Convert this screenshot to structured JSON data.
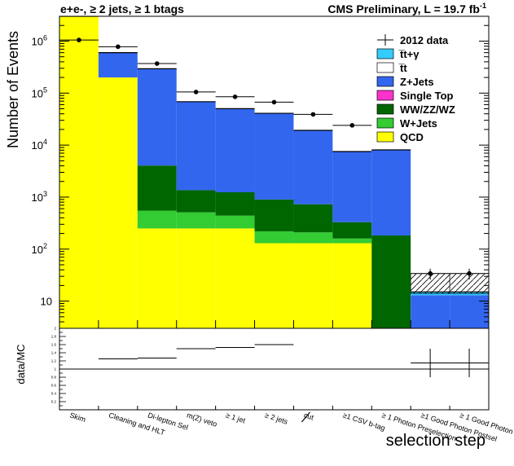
{
  "header": {
    "channel": "e+e-, ≥ 2 jets, ≥ 1 btags",
    "experiment_prefix": "CMS Preliminary, L = 19.7 fb",
    "experiment_sup": "-1"
  },
  "chart_data": {
    "type": "bar",
    "stacked": true,
    "title": "",
    "ylabel": "Number of Events",
    "xlabel": "selection step",
    "yscale": "log",
    "ylim": [
      3,
      3000000
    ],
    "legend_position": "top-right",
    "categories": [
      "Skim",
      "Cleaning and HLT",
      "Di-lepton Sel",
      "m(Z) veto",
      "≥ 1 jet",
      "≥ 2 jets",
      "cut",
      "≥1 CSV b-tag",
      "≥ 1 Photon Preselection",
      "≥1 Good Photon Postsel",
      "≥ 1 Good Photon"
    ],
    "y_ticks": [
      {
        "value": 10,
        "label": "10"
      },
      {
        "value": 100,
        "label": "10",
        "exp": "2"
      },
      {
        "value": 1000,
        "label": "10",
        "exp": "3"
      },
      {
        "value": 10000,
        "label": "10",
        "exp": "4"
      },
      {
        "value": 100000,
        "label": "10",
        "exp": "5"
      },
      {
        "value": 1000000,
        "label": "10",
        "exp": "6"
      }
    ],
    "series": [
      {
        "name": "QCD",
        "color": "#ffff00",
        "values": [
          3000000,
          200000,
          250,
          250,
          250,
          130,
          130,
          130,
          3,
          3,
          3
        ]
      },
      {
        "name": "W+Jets",
        "color": "#33cc33",
        "values": [
          0,
          0,
          300,
          260,
          190,
          90,
          80,
          30,
          0,
          0,
          0
        ]
      },
      {
        "name": "WW/ZZ/WZ",
        "color": "#006600",
        "values": [
          0,
          0,
          3500,
          850,
          800,
          680,
          520,
          170,
          180,
          0,
          0
        ]
      },
      {
        "name": "Single Top",
        "color": "#ff33cc",
        "values": [
          0,
          0,
          0,
          0,
          0,
          0,
          0,
          0,
          0,
          0,
          0
        ]
      },
      {
        "name": "Z+Jets",
        "color": "#3366ee",
        "values": [
          0,
          400000,
          290000,
          67000,
          49000,
          40000,
          18500,
          7200,
          7900,
          10,
          10
        ]
      },
      {
        "name": "t̅t",
        "color": "#ffffff",
        "values": [
          0,
          0,
          0,
          0,
          0,
          0,
          0,
          0,
          0,
          0,
          0
        ]
      },
      {
        "name": "t̅t+γ",
        "color": "#33ccff",
        "values": [
          0,
          0,
          0,
          0,
          0,
          0,
          0,
          0,
          0,
          2,
          2
        ]
      }
    ],
    "data_series": {
      "name": "2012 data",
      "values": [
        1050000,
        780000,
        370000,
        105000,
        85000,
        67000,
        39000,
        24000,
        null,
        34,
        34
      ],
      "y_errors": [
        0,
        0,
        0,
        0,
        0,
        0,
        0,
        0,
        0,
        8,
        8
      ]
    },
    "ratio": {
      "ylabel": "data/MC",
      "ylim": [
        0,
        2
      ],
      "y_ticks": [
        "0.2",
        "0.4",
        "0.6",
        "0.8",
        "1",
        "1.2",
        "1.4",
        "1.6",
        "1.8",
        "2"
      ],
      "values": [
        null,
        1.25,
        1.27,
        1.5,
        1.53,
        1.6,
        null,
        null,
        null,
        1.15,
        1.15
      ],
      "y_errors": [
        0,
        0,
        0,
        0,
        0,
        0,
        0,
        0,
        0,
        0.35,
        0.35
      ]
    }
  }
}
